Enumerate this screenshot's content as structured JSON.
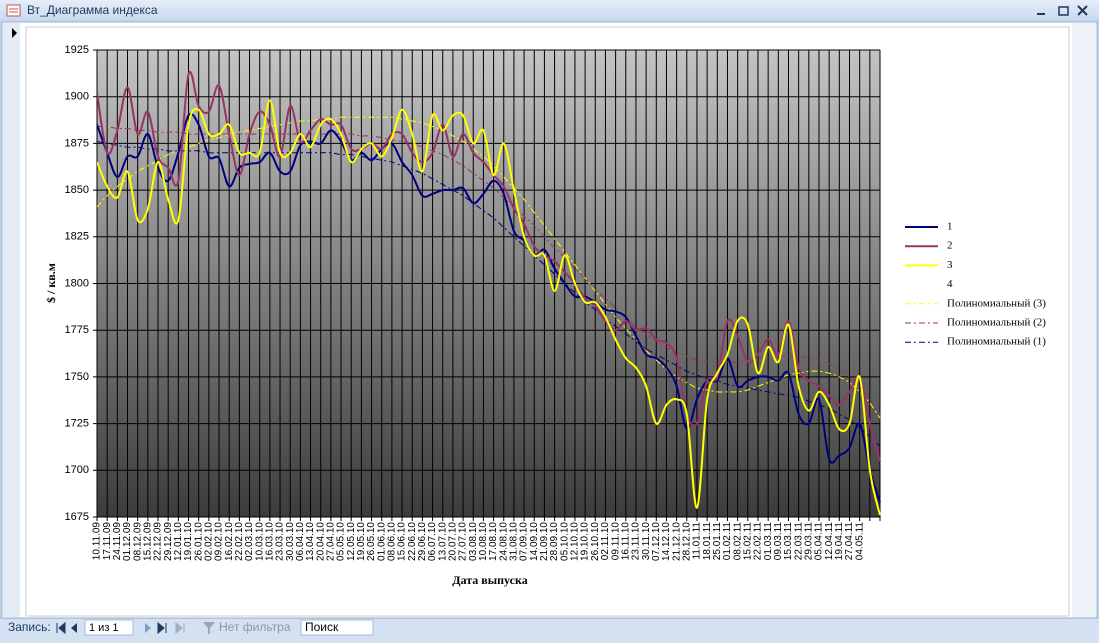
{
  "window": {
    "title": "Вт_Диаграмма индекса"
  },
  "nav": {
    "record_label": "Запись:",
    "record": "1 из 1",
    "filter": "Нет фильтра",
    "search": "Поиск"
  },
  "chart_data": {
    "type": "line",
    "ylabel": "$ / кв.м",
    "xlabel": "Дата выпуска",
    "ylim": [
      1675,
      1925
    ],
    "yticks": [
      1675,
      1700,
      1725,
      1750,
      1775,
      1800,
      1825,
      1850,
      1875,
      1900,
      1925
    ],
    "grid": true,
    "smooth": true,
    "legend": "right",
    "categories": [
      "10.11.09",
      "17.11.09",
      "24.11.09",
      "01.12.09",
      "08.12.09",
      "15.12.09",
      "22.12.09",
      "29.12.09",
      "12.01.10",
      "19.01.10",
      "26.01.10",
      "02.02.10",
      "09.02.10",
      "16.02.10",
      "22.02.10",
      "02.03.10",
      "10.03.10",
      "16.03.10",
      "23.03.10",
      "30.03.10",
      "06.04.10",
      "13.04.10",
      "20.04.10",
      "27.04.10",
      "05.05.10",
      "12.05.10",
      "19.05.10",
      "26.05.10",
      "01.06.10",
      "08.06.10",
      "15.06.10",
      "22.06.10",
      "29.06.10",
      "06.07.10",
      "13.07.10",
      "20.07.10",
      "27.07.10",
      "03.08.10",
      "10.08.10",
      "17.08.10",
      "24.08.10",
      "31.08.10",
      "07.09.10",
      "14.09.10",
      "21.09.10",
      "28.09.10",
      "05.10.10",
      "12.10.10",
      "19.10.10",
      "26.10.10",
      "02.11.10",
      "09.11.10",
      "16.11.10",
      "23.11.10",
      "30.11.10",
      "07.12.10",
      "14.12.10",
      "21.12.10",
      "28.12.10",
      "11.01.11",
      "18.01.11",
      "25.01.11",
      "01.02.11",
      "08.02.11",
      "15.02.11",
      "22.02.11",
      "01.03.11",
      "09.03.11",
      "15.03.11",
      "22.03.11",
      "29.03.11",
      "05.04.11",
      "12.04.11",
      "19.04.11",
      "27.04.11",
      "04.05.11",
      null,
      null
    ],
    "series": [
      {
        "name": "1",
        "color": "#000080",
        "width": 2,
        "line_style": "solid",
        "values": [
          1885,
          1870,
          1857,
          1868,
          1868,
          1880,
          1862,
          1855,
          1870,
          1890,
          1885,
          1868,
          1867,
          1852,
          1862,
          1864,
          1865,
          1870,
          1860,
          1860,
          1874,
          1876,
          1875,
          1882,
          1876,
          1866,
          1870,
          1866,
          1872,
          1875,
          1865,
          1858,
          1847,
          1848,
          1850,
          1850,
          1851,
          1843,
          1848,
          1855,
          1848,
          1828,
          1823,
          1815,
          1818,
          1808,
          1800,
          1793,
          1793,
          1790,
          1786,
          1785,
          1782,
          1772,
          1762,
          1760,
          1755,
          1745,
          1722,
          1738,
          1748,
          1748,
          1760,
          1745,
          1748,
          1750,
          1750,
          1748,
          1752,
          1730,
          1725,
          1738,
          1706,
          1708,
          1712,
          1725,
          1700,
          1683
        ]
      },
      {
        "name": "2",
        "color": "#993366",
        "width": 2,
        "line_style": "solid",
        "values": [
          1902,
          1870,
          1882,
          1905,
          1880,
          1892,
          1868,
          1862,
          1855,
          1912,
          1895,
          1892,
          1906,
          1880,
          1858,
          1880,
          1892,
          1885,
          1868,
          1895,
          1876,
          1882,
          1888,
          1885,
          1885,
          1872,
          1872,
          1875,
          1872,
          1880,
          1880,
          1870,
          1865,
          1870,
          1885,
          1868,
          1880,
          1870,
          1865,
          1858,
          1852,
          1840,
          1832,
          1820,
          1815,
          1812,
          1806,
          1800,
          1792,
          1788,
          1780,
          1775,
          1780,
          1775,
          1776,
          1770,
          1768,
          1760,
          1730,
          1725,
          1748,
          1750,
          1780,
          1772,
          1758,
          1762,
          1770,
          1762,
          1780,
          1755,
          1748,
          1745,
          1740,
          1735,
          1742,
          1750,
          1725,
          1705
        ]
      },
      {
        "name": "3",
        "color": "#ffff00",
        "width": 2,
        "line_style": "solid",
        "values": [
          1865,
          1852,
          1846,
          1860,
          1834,
          1840,
          1865,
          1845,
          1834,
          1885,
          1893,
          1880,
          1880,
          1885,
          1870,
          1870,
          1870,
          1898,
          1870,
          1870,
          1880,
          1873,
          1885,
          1888,
          1880,
          1865,
          1872,
          1875,
          1868,
          1878,
          1893,
          1880,
          1860,
          1890,
          1882,
          1890,
          1890,
          1875,
          1882,
          1858,
          1875,
          1850,
          1825,
          1815,
          1815,
          1796,
          1815,
          1800,
          1790,
          1790,
          1782,
          1770,
          1760,
          1755,
          1745,
          1725,
          1735,
          1738,
          1730,
          1680,
          1738,
          1752,
          1762,
          1780,
          1778,
          1752,
          1766,
          1758,
          1778,
          1745,
          1732,
          1742,
          1735,
          1722,
          1725,
          1750,
          1700,
          1676
        ]
      },
      {
        "name": "4",
        "color": "#ffffff",
        "width": 2,
        "line_style": "solid",
        "values": [
          null,
          null,
          null,
          null,
          null,
          null,
          null,
          null,
          null,
          null,
          null,
          null,
          null,
          null,
          null,
          null,
          null,
          null,
          null,
          null,
          null,
          null,
          null,
          null,
          null,
          null,
          null,
          null,
          null,
          null,
          null,
          null,
          null,
          null,
          null,
          null,
          null,
          null,
          null,
          null,
          null,
          null,
          null,
          null,
          null,
          null,
          null,
          null,
          null,
          null,
          null,
          null,
          null,
          null,
          null,
          null,
          null,
          null,
          null,
          null,
          null,
          null,
          null,
          null,
          null,
          null,
          null,
          null,
          null,
          null,
          null,
          null,
          null,
          null,
          null,
          null,
          null,
          null
        ]
      },
      {
        "name": "Полиномиальный (3)",
        "color": "#ffff00",
        "width": 1,
        "line_style": "dashdot",
        "values": [
          1841,
          1847,
          1852,
          1856,
          1860,
          1863,
          1866,
          1869,
          1871,
          1873,
          1875,
          1877,
          1878,
          1880,
          1881,
          1882,
          1883,
          1884,
          1885,
          1886,
          1887,
          1887,
          1888,
          1888,
          1889,
          1889,
          1889,
          1889,
          1889,
          1889,
          1888,
          1887,
          1886,
          1884,
          1882,
          1879,
          1876,
          1872,
          1868,
          1863,
          1857,
          1851,
          1845,
          1838,
          1831,
          1824,
          1817,
          1810,
          1803,
          1796,
          1789,
          1782,
          1776,
          1770,
          1764,
          1759,
          1754,
          1750,
          1747,
          1744,
          1743,
          1742,
          1742,
          1742,
          1743,
          1745,
          1747,
          1749,
          1751,
          1752,
          1753,
          1753,
          1752,
          1750,
          1747,
          1742,
          1736,
          1728
        ]
      },
      {
        "name": "Полиномиальный (2)",
        "color": "#993366",
        "width": 1,
        "line_style": "dashdot",
        "values": [
          1884,
          1884,
          1883,
          1883,
          1882,
          1882,
          1881,
          1881,
          1881,
          1880,
          1880,
          1880,
          1880,
          1880,
          1880,
          1880,
          1880,
          1880,
          1880,
          1880,
          1880,
          1880,
          1880,
          1880,
          1880,
          1880,
          1879,
          1879,
          1878,
          1877,
          1876,
          1875,
          1873,
          1871,
          1869,
          1866,
          1863,
          1859,
          1855,
          1851,
          1846,
          1841,
          1836,
          1831,
          1825,
          1819,
          1814,
          1808,
          1803,
          1797,
          1792,
          1787,
          1782,
          1777,
          1773,
          1769,
          1766,
          1763,
          1761,
          1759,
          1758,
          1758,
          1758,
          1758,
          1759,
          1760,
          1760,
          1761,
          1761,
          1761,
          1760,
          1759,
          1757,
          1754,
          1750,
          1745,
          1738,
          1730
        ]
      },
      {
        "name": "Полиномиальный (1)",
        "color": "#000080",
        "width": 1,
        "line_style": "dashdot",
        "values": [
          1876,
          1875,
          1874,
          1873,
          1873,
          1872,
          1872,
          1871,
          1871,
          1871,
          1871,
          1870,
          1870,
          1870,
          1870,
          1870,
          1870,
          1870,
          1870,
          1870,
          1870,
          1870,
          1870,
          1870,
          1869,
          1869,
          1868,
          1867,
          1866,
          1865,
          1863,
          1861,
          1859,
          1856,
          1853,
          1850,
          1847,
          1843,
          1839,
          1835,
          1830,
          1825,
          1820,
          1815,
          1810,
          1805,
          1800,
          1795,
          1790,
          1786,
          1781,
          1777,
          1773,
          1769,
          1765,
          1762,
          1759,
          1756,
          1753,
          1751,
          1749,
          1748,
          1746,
          1745,
          1744,
          1743,
          1742,
          1741,
          1740,
          1739,
          1737,
          1735,
          1733,
          1730,
          1727,
          1723,
          1718,
          1713
        ]
      }
    ]
  }
}
